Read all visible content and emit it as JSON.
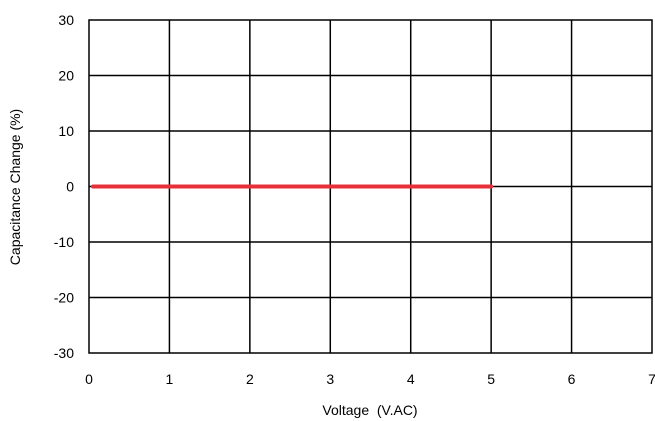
{
  "chart_data": {
    "type": "line",
    "title": "",
    "xlabel": "Voltage  (V.AC)",
    "ylabel": "Capacitance Change (%)",
    "xlim": [
      0,
      7
    ],
    "ylim": [
      -30,
      30
    ],
    "x_ticks": [
      "0",
      "1",
      "2",
      "3",
      "4",
      "5",
      "6",
      "7"
    ],
    "y_ticks": [
      "30",
      "20",
      "10",
      "0",
      "-10",
      "-20",
      "-30"
    ],
    "grid": true,
    "series": [
      {
        "color": "#e8303a",
        "x": [
          0.05,
          5
        ],
        "y": [
          0,
          0
        ]
      }
    ]
  }
}
